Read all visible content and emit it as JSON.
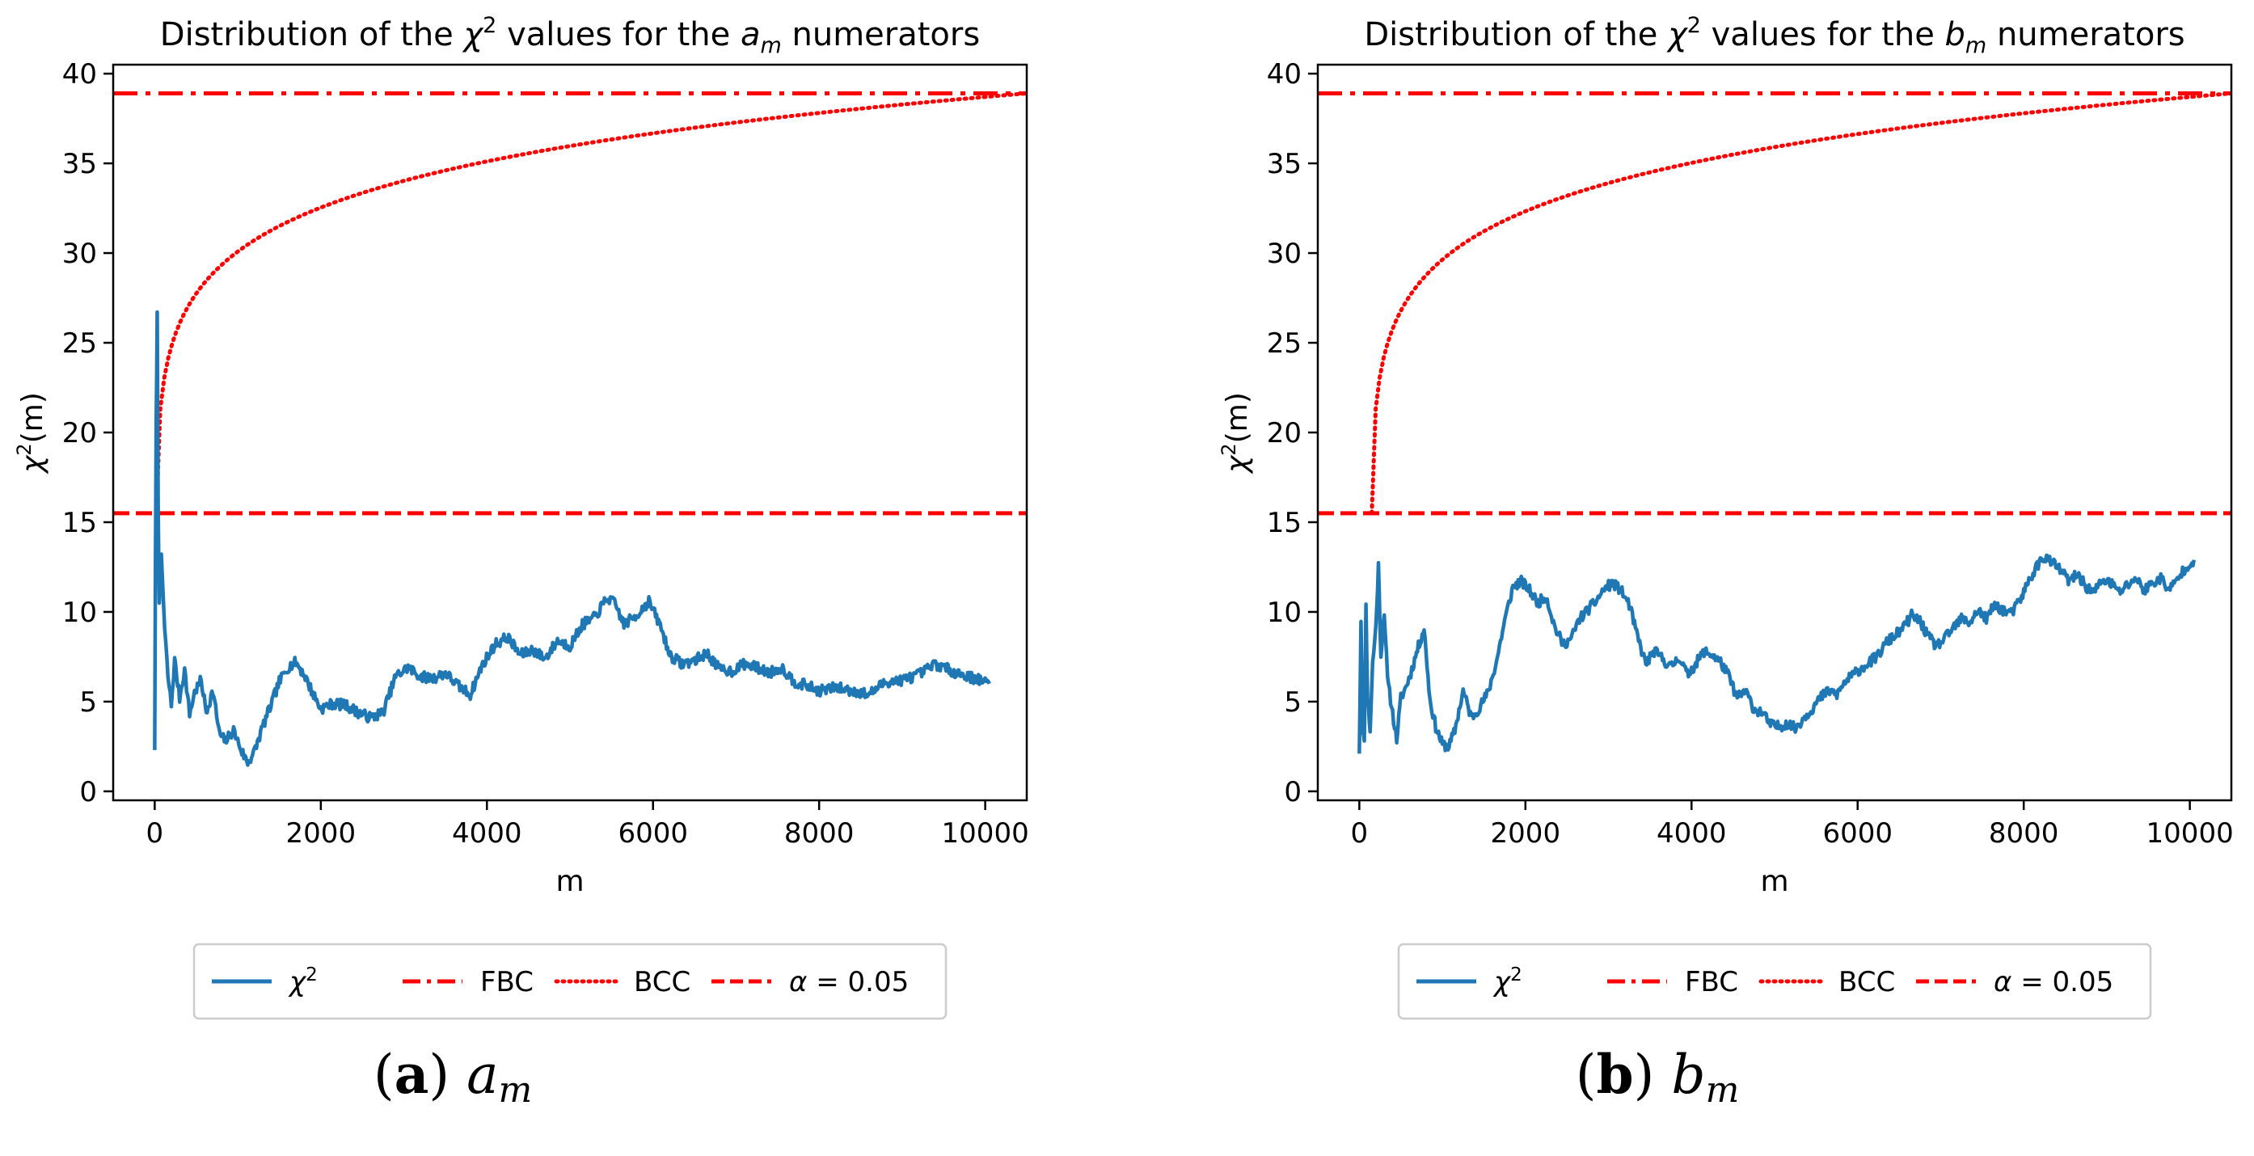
{
  "chart_data": [
    {
      "type": "line",
      "title_parts": [
        "Distribution of the ",
        "χ",
        "2",
        " values for the ",
        "a",
        "m",
        " numerators"
      ],
      "xlabel": "m",
      "ylabel_parts": [
        "χ",
        "2",
        "(m)"
      ],
      "xlim": [
        -500,
        10500
      ],
      "ylim": [
        -0.5,
        40.5
      ],
      "xticks": [
        0,
        2000,
        4000,
        6000,
        8000,
        10000
      ],
      "yticks": [
        0,
        5,
        10,
        15,
        20,
        25,
        30,
        35,
        40
      ],
      "fbc_value": 38.9,
      "alpha_value": 15.5,
      "bcc_start_m": 20,
      "chi2_knots": [
        [
          0,
          2.3
        ],
        [
          8,
          11.8
        ],
        [
          18,
          20.5
        ],
        [
          30,
          26.5
        ],
        [
          42,
          16
        ],
        [
          55,
          10.2
        ],
        [
          80,
          13.2
        ],
        [
          120,
          9
        ],
        [
          160,
          6.4
        ],
        [
          200,
          4.8
        ],
        [
          240,
          7.3
        ],
        [
          300,
          5.2
        ],
        [
          360,
          6.8
        ],
        [
          420,
          4.3
        ],
        [
          480,
          5.5
        ],
        [
          560,
          6.2
        ],
        [
          620,
          4.4
        ],
        [
          700,
          5.6
        ],
        [
          780,
          3.2
        ],
        [
          850,
          2.8
        ],
        [
          950,
          3.4
        ],
        [
          1050,
          2.2
        ],
        [
          1120,
          1.6
        ],
        [
          1200,
          2.2
        ],
        [
          1300,
          3.6
        ],
        [
          1400,
          4.8
        ],
        [
          1500,
          6.1
        ],
        [
          1600,
          6.9
        ],
        [
          1700,
          7.2
        ],
        [
          1800,
          6.5
        ],
        [
          1900,
          5.5
        ],
        [
          2000,
          4.6
        ],
        [
          2150,
          4.9
        ],
        [
          2300,
          4.8
        ],
        [
          2450,
          4.4
        ],
        [
          2600,
          4.1
        ],
        [
          2750,
          4.4
        ],
        [
          2900,
          6.4
        ],
        [
          3050,
          6.9
        ],
        [
          3200,
          6.4
        ],
        [
          3350,
          6.3
        ],
        [
          3500,
          6.6
        ],
        [
          3650,
          5.9
        ],
        [
          3800,
          5.4
        ],
        [
          3950,
          7.1
        ],
        [
          4100,
          8.2
        ],
        [
          4250,
          8.6
        ],
        [
          4400,
          7.6
        ],
        [
          4550,
          7.9
        ],
        [
          4700,
          7.4
        ],
        [
          4850,
          8.4
        ],
        [
          5000,
          8.1
        ],
        [
          5150,
          9.3
        ],
        [
          5300,
          9.7
        ],
        [
          5450,
          10.8
        ],
        [
          5550,
          10.4
        ],
        [
          5650,
          9.3
        ],
        [
          5800,
          9.8
        ],
        [
          5950,
          10.6
        ],
        [
          6100,
          9.1
        ],
        [
          6200,
          7.6
        ],
        [
          6350,
          7.1
        ],
        [
          6500,
          7.3
        ],
        [
          6650,
          7.7
        ],
        [
          6800,
          6.8
        ],
        [
          6950,
          6.7
        ],
        [
          7100,
          7.1
        ],
        [
          7250,
          6.9
        ],
        [
          7400,
          6.6
        ],
        [
          7550,
          6.9
        ],
        [
          7700,
          6.1
        ],
        [
          7850,
          5.9
        ],
        [
          8000,
          5.6
        ],
        [
          8200,
          5.8
        ],
        [
          8400,
          5.6
        ],
        [
          8600,
          5.4
        ],
        [
          8800,
          6.1
        ],
        [
          9000,
          6.2
        ],
        [
          9200,
          6.5
        ],
        [
          9400,
          7.1
        ],
        [
          9600,
          6.7
        ],
        [
          9800,
          6.4
        ],
        [
          10000,
          6.1
        ],
        [
          10050,
          6.0
        ]
      ],
      "chi2_noise": 0.6,
      "chi2_seed": 7
    },
    {
      "type": "line",
      "title_parts": [
        "Distribution of the ",
        "χ",
        "2",
        " values for the ",
        "b",
        "m",
        " numerators"
      ],
      "xlabel": "m",
      "ylabel_parts": [
        "χ",
        "2",
        "(m)"
      ],
      "xlim": [
        -500,
        10500
      ],
      "ylim": [
        -0.5,
        40.5
      ],
      "xticks": [
        0,
        2000,
        4000,
        6000,
        8000,
        10000
      ],
      "yticks": [
        0,
        5,
        10,
        15,
        20,
        25,
        30,
        35,
        40
      ],
      "fbc_value": 38.9,
      "alpha_value": 15.5,
      "bcc_start_m": 150,
      "chi2_knots": [
        [
          0,
          2.1
        ],
        [
          20,
          9.6
        ],
        [
          40,
          3.5
        ],
        [
          60,
          2.6
        ],
        [
          80,
          10.3
        ],
        [
          100,
          5.2
        ],
        [
          130,
          3.4
        ],
        [
          160,
          7.1
        ],
        [
          200,
          9.2
        ],
        [
          230,
          12.6
        ],
        [
          260,
          7.6
        ],
        [
          300,
          10.1
        ],
        [
          340,
          6.2
        ],
        [
          400,
          4.4
        ],
        [
          450,
          2.9
        ],
        [
          500,
          5.2
        ],
        [
          560,
          5.8
        ],
        [
          620,
          6.6
        ],
        [
          700,
          7.9
        ],
        [
          780,
          9.1
        ],
        [
          850,
          5.1
        ],
        [
          920,
          3.6
        ],
        [
          1000,
          2.6
        ],
        [
          1080,
          2.5
        ],
        [
          1150,
          3.4
        ],
        [
          1250,
          5.6
        ],
        [
          1350,
          4.1
        ],
        [
          1450,
          4.7
        ],
        [
          1550,
          5.5
        ],
        [
          1650,
          7.2
        ],
        [
          1750,
          9.5
        ],
        [
          1850,
          11.4
        ],
        [
          1950,
          11.7
        ],
        [
          2050,
          11.2
        ],
        [
          2150,
          10.5
        ],
        [
          2250,
          10.9
        ],
        [
          2350,
          9.2
        ],
        [
          2450,
          8.2
        ],
        [
          2550,
          8.5
        ],
        [
          2650,
          9.6
        ],
        [
          2750,
          10.1
        ],
        [
          2850,
          10.6
        ],
        [
          2950,
          11.3
        ],
        [
          3050,
          11.6
        ],
        [
          3150,
          11.2
        ],
        [
          3250,
          10.4
        ],
        [
          3350,
          8.6
        ],
        [
          3450,
          7.1
        ],
        [
          3550,
          7.8
        ],
        [
          3650,
          7.4
        ],
        [
          3750,
          6.9
        ],
        [
          3850,
          7.5
        ],
        [
          3950,
          6.5
        ],
        [
          4050,
          7.1
        ],
        [
          4150,
          7.8
        ],
        [
          4250,
          7.6
        ],
        [
          4350,
          7.2
        ],
        [
          4450,
          6.4
        ],
        [
          4550,
          5.2
        ],
        [
          4650,
          5.6
        ],
        [
          4750,
          4.6
        ],
        [
          4850,
          4.4
        ],
        [
          4950,
          3.7
        ],
        [
          5050,
          3.6
        ],
        [
          5150,
          3.8
        ],
        [
          5250,
          3.5
        ],
        [
          5350,
          4.1
        ],
        [
          5450,
          4.6
        ],
        [
          5550,
          5.2
        ],
        [
          5650,
          5.6
        ],
        [
          5750,
          5.4
        ],
        [
          5850,
          6.1
        ],
        [
          5950,
          6.5
        ],
        [
          6050,
          6.9
        ],
        [
          6150,
          7.2
        ],
        [
          6250,
          7.6
        ],
        [
          6350,
          8.3
        ],
        [
          6450,
          8.7
        ],
        [
          6550,
          9.1
        ],
        [
          6650,
          9.8
        ],
        [
          6750,
          9.5
        ],
        [
          6850,
          8.6
        ],
        [
          6950,
          8.1
        ],
        [
          7050,
          8.5
        ],
        [
          7150,
          9.1
        ],
        [
          7250,
          9.6
        ],
        [
          7350,
          9.4
        ],
        [
          7450,
          10.1
        ],
        [
          7550,
          9.6
        ],
        [
          7650,
          10.4
        ],
        [
          7750,
          10.1
        ],
        [
          7850,
          9.9
        ],
        [
          7950,
          10.6
        ],
        [
          8050,
          11.6
        ],
        [
          8150,
          12.5
        ],
        [
          8250,
          13.1
        ],
        [
          8350,
          12.7
        ],
        [
          8450,
          12.3
        ],
        [
          8550,
          11.7
        ],
        [
          8650,
          12.1
        ],
        [
          8750,
          11.4
        ],
        [
          8850,
          11.1
        ],
        [
          8950,
          11.8
        ],
        [
          9050,
          11.6
        ],
        [
          9150,
          11.1
        ],
        [
          9250,
          11.5
        ],
        [
          9350,
          11.9
        ],
        [
          9450,
          11.2
        ],
        [
          9550,
          11.6
        ],
        [
          9650,
          11.9
        ],
        [
          9750,
          11.2
        ],
        [
          9850,
          11.8
        ],
        [
          9950,
          12.5
        ],
        [
          10050,
          12.9
        ]
      ],
      "chi2_noise": 0.6,
      "chi2_seed": 11
    }
  ],
  "legend": {
    "chi2_parts": [
      "χ",
      "2"
    ],
    "fbc": "FBC",
    "bcc": "BCC",
    "alpha_parts": [
      "α",
      " = 0.05"
    ]
  },
  "captions": [
    {
      "letter": "a",
      "symbol": "a",
      "sub": "m"
    },
    {
      "letter": "b",
      "symbol": "b",
      "sub": "m"
    }
  ],
  "colors": {
    "chi2_line": "#1f77b4",
    "threshold_red": "#ff0000",
    "axes": "#000000",
    "legend_frame": "#cccccc"
  }
}
